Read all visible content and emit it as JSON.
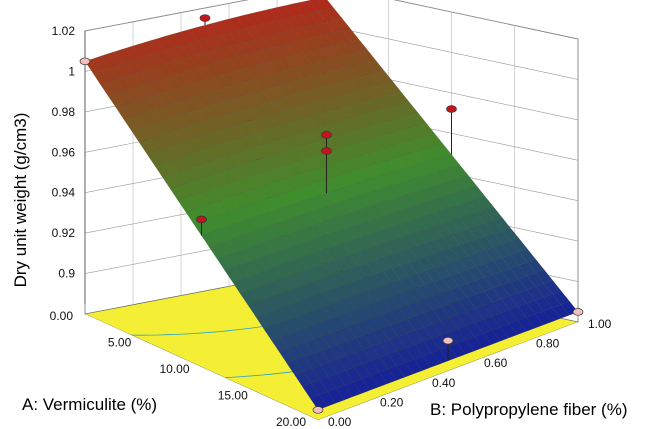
{
  "chart_data": {
    "type": "surface",
    "title": "",
    "zlabel": "Dry unit weight (g/cm3)",
    "xlabel": "A: Vermiculite (%)",
    "ylabel": "B: Polypropylene fiber (%)",
    "x_ticks": [
      "0.00",
      "5.00",
      "10.00",
      "15.00",
      "20.00"
    ],
    "y_ticks": [
      "0.00",
      "0.20",
      "0.40",
      "0.60",
      "0.80",
      "1.00"
    ],
    "z_ticks": [
      "0.9",
      "0.92",
      "0.94",
      "0.96",
      "0.98",
      "1",
      "1.02"
    ],
    "xlim": [
      0,
      20
    ],
    "ylim": [
      0,
      1
    ],
    "zlim": [
      0.88,
      1.02
    ],
    "surface_corners": [
      {
        "x": 0,
        "y": 0,
        "z": 1.005
      },
      {
        "x": 0,
        "y": 1,
        "z": 1.014
      },
      {
        "x": 20,
        "y": 0,
        "z": 0.885
      },
      {
        "x": 20,
        "y": 1,
        "z": 0.885
      }
    ],
    "design_points": [
      {
        "x": 0,
        "y": 0,
        "z": 1.005,
        "above": false
      },
      {
        "x": 0,
        "y": 0.5,
        "z": 1.015,
        "above": true
      },
      {
        "x": 0,
        "y": 1,
        "z": 1.015,
        "above": true
      },
      {
        "x": 10,
        "y": 0,
        "z": 0.953,
        "above": true
      },
      {
        "x": 10,
        "y": 0.5,
        "z": 0.977,
        "above": true
      },
      {
        "x": 10,
        "y": 0.5,
        "z": 0.969,
        "above": true
      },
      {
        "x": 10,
        "y": 1,
        "z": 0.972,
        "above": true
      },
      {
        "x": 20,
        "y": 0,
        "z": 0.885,
        "above": false
      },
      {
        "x": 20,
        "y": 0.5,
        "z": 0.895,
        "above": false
      },
      {
        "x": 20,
        "y": 1,
        "z": 0.885,
        "above": false
      }
    ],
    "floor_contours": true,
    "floor_color": "#f4ee35",
    "grid": true,
    "colors": {
      "high": "#b5261a",
      "mid": "#3f8e2c",
      "low": "#16209a",
      "point": "#c4151c",
      "point_below": "#f3c0bc"
    }
  }
}
